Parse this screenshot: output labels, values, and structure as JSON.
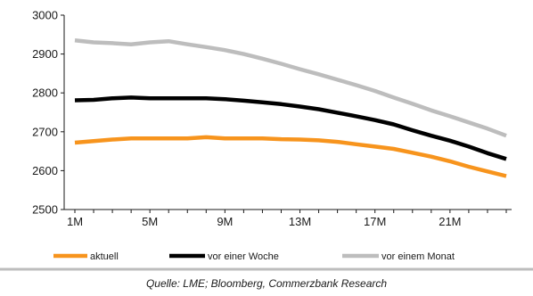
{
  "chart_data": {
    "type": "line",
    "x_labels": [
      "1M",
      "5M",
      "9M",
      "13M",
      "17M",
      "21M"
    ],
    "x": [
      1,
      2,
      3,
      4,
      5,
      6,
      7,
      8,
      9,
      10,
      11,
      12,
      13,
      14,
      15,
      16,
      17,
      18,
      19,
      20,
      21,
      22,
      23,
      24
    ],
    "ylim": [
      2500,
      3000
    ],
    "y_ticks": [
      2500,
      2600,
      2700,
      2800,
      2900,
      3000
    ],
    "series": [
      {
        "name": "aktuell",
        "color": "#F7941D",
        "values": [
          2672,
          2676,
          2680,
          2683,
          2683,
          2683,
          2683,
          2686,
          2683,
          2683,
          2683,
          2681,
          2680,
          2678,
          2674,
          2668,
          2662,
          2656,
          2646,
          2636,
          2624,
          2610,
          2598,
          2586
        ]
      },
      {
        "name": "vor einer Woche",
        "color": "#000000",
        "values": [
          2781,
          2782,
          2786,
          2788,
          2786,
          2786,
          2786,
          2786,
          2784,
          2780,
          2776,
          2771,
          2765,
          2758,
          2749,
          2740,
          2730,
          2719,
          2704,
          2690,
          2677,
          2662,
          2645,
          2630
        ]
      },
      {
        "name": "vor einem Monat",
        "color": "#BDBDBD",
        "values": [
          2935,
          2930,
          2928,
          2925,
          2930,
          2933,
          2925,
          2918,
          2910,
          2900,
          2888,
          2875,
          2861,
          2848,
          2834,
          2820,
          2805,
          2788,
          2772,
          2755,
          2740,
          2724,
          2708,
          2690
        ]
      }
    ],
    "legend_position": "bottom",
    "source": "Quelle: LME; Bloomberg, Commerzbank Research"
  }
}
